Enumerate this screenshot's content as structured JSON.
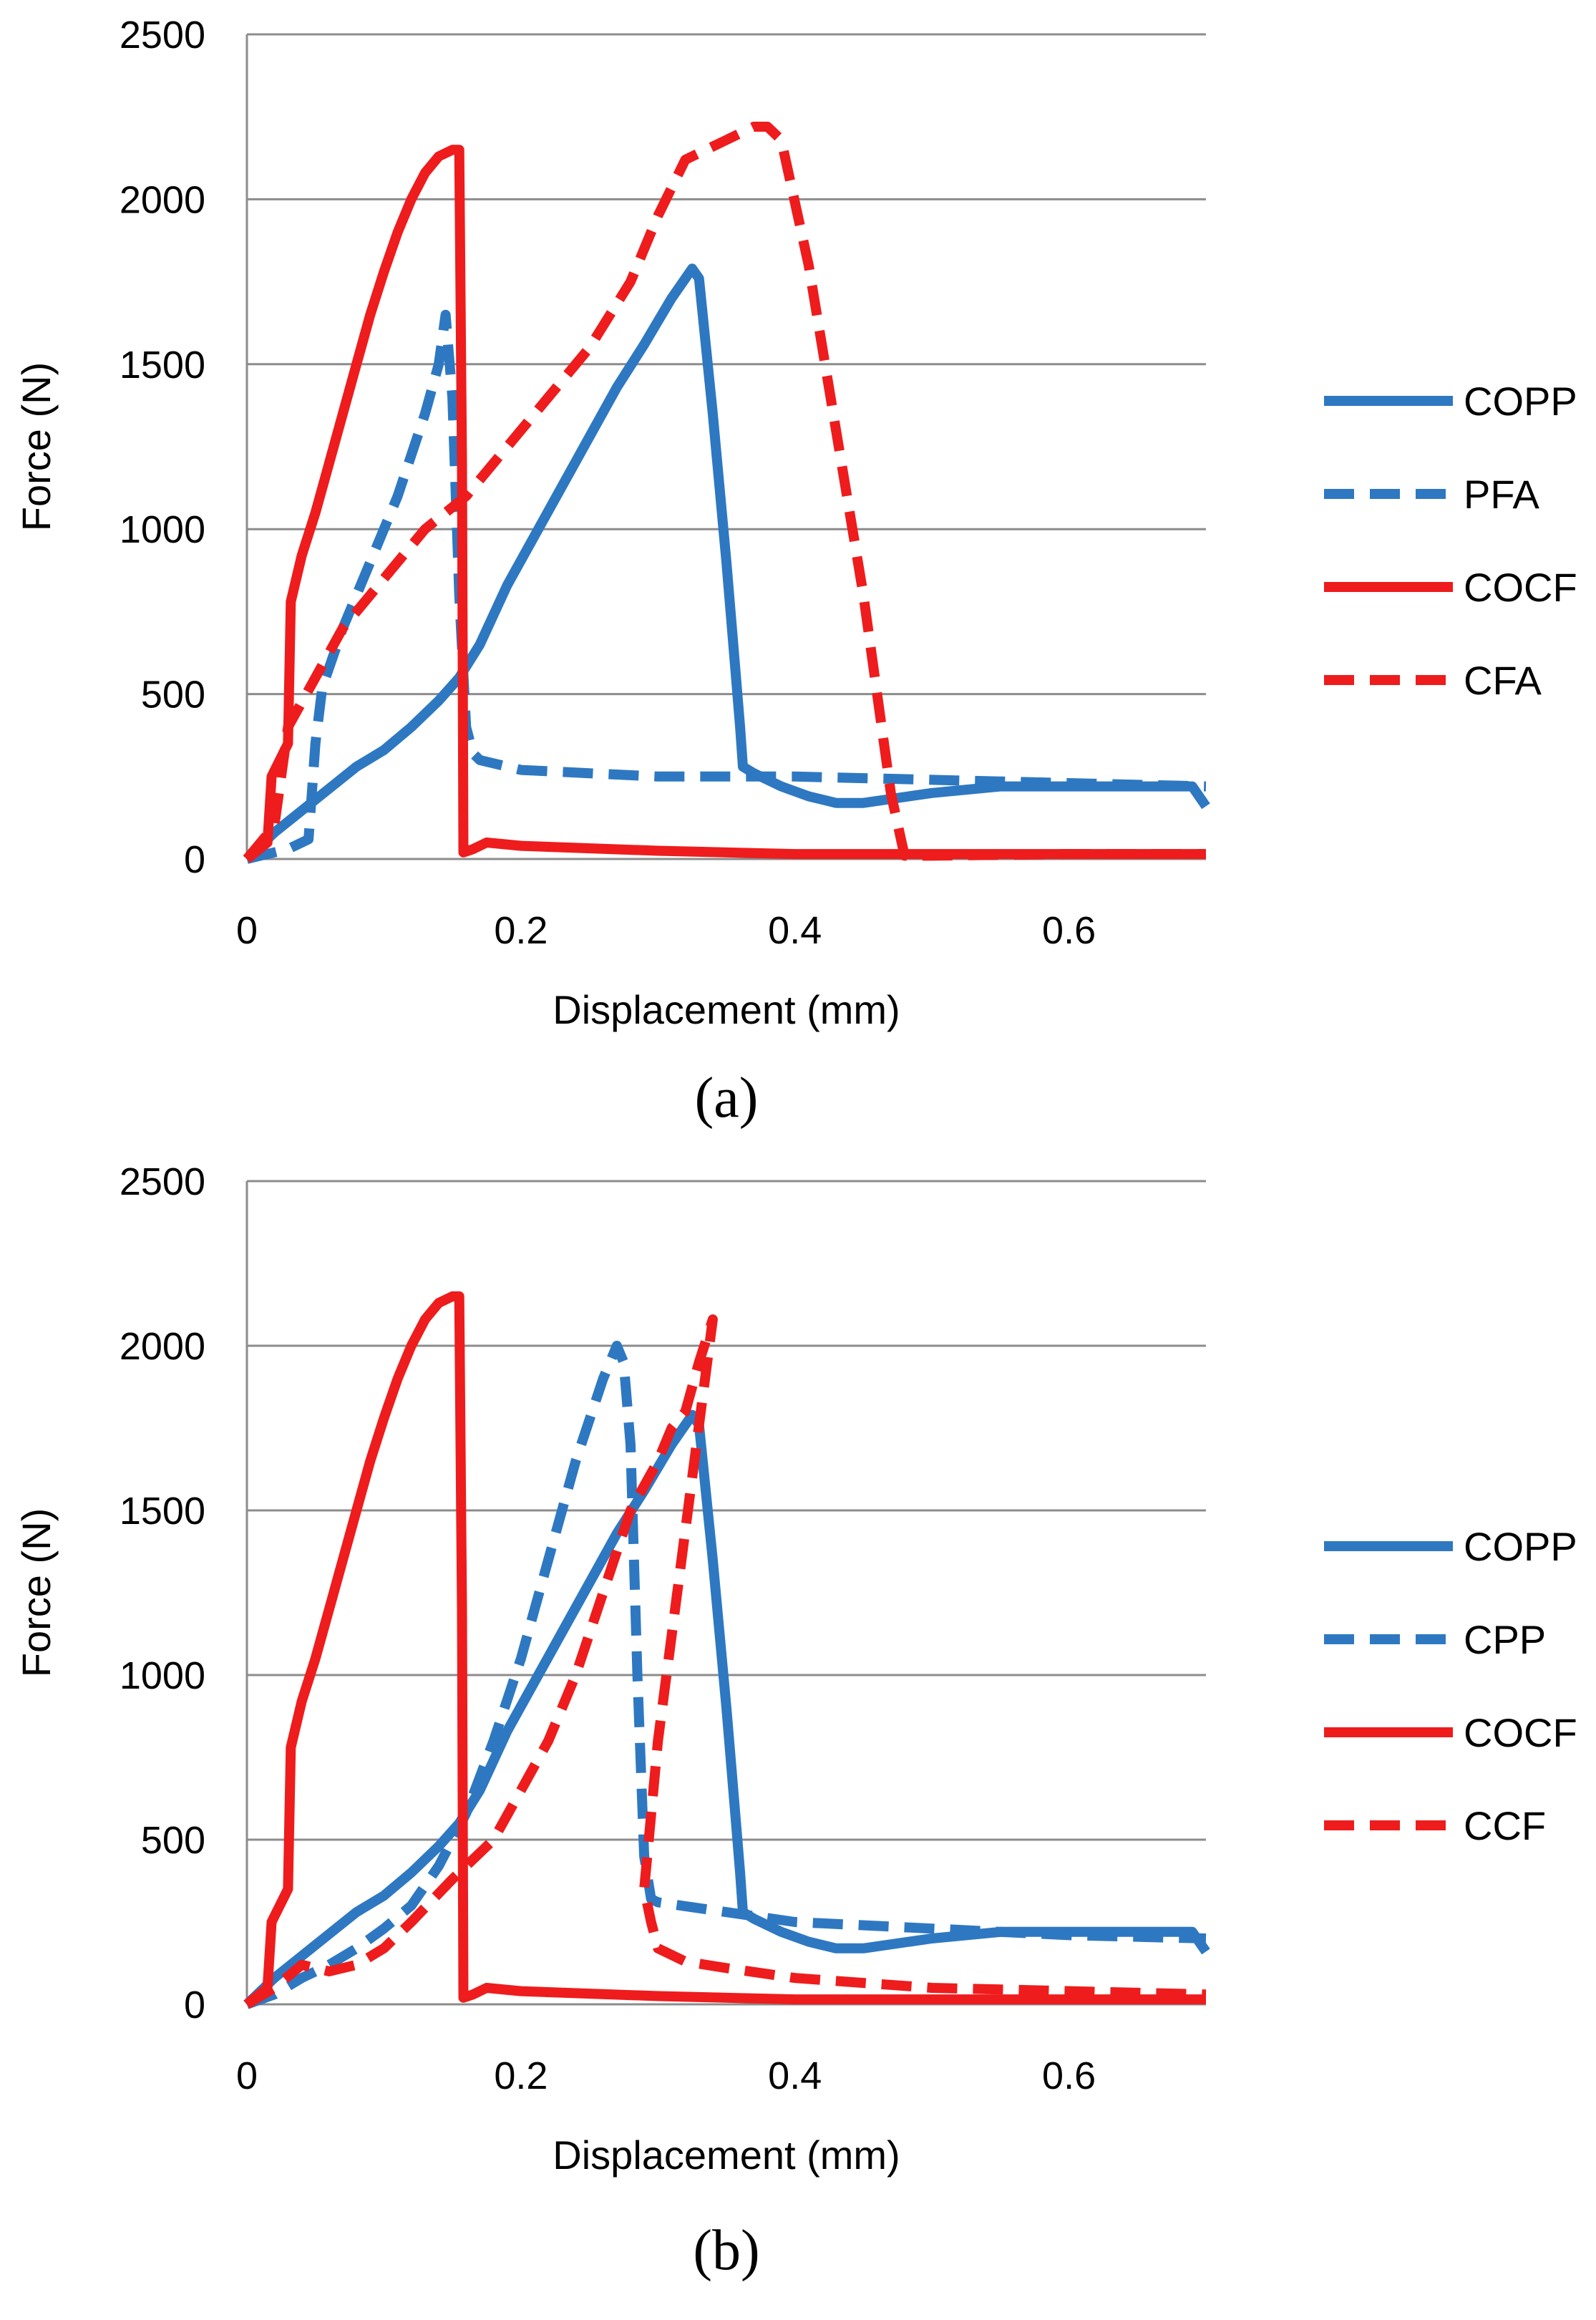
{
  "chart_data": [
    {
      "type": "line",
      "panel": "a",
      "caption": "(a)",
      "xlabel": "Displacement (mm)",
      "ylabel": "Force (N)",
      "xlim": [
        0,
        0.7
      ],
      "ylim": [
        0,
        2500
      ],
      "xticks": [
        0,
        0.2,
        0.4,
        0.6
      ],
      "xtick_labels": [
        "0",
        "0.2",
        "0.4",
        "0.6"
      ],
      "yticks": [
        0,
        500,
        1000,
        1500,
        2000,
        2500
      ],
      "ytick_labels": [
        "0",
        "500",
        "1000",
        "1500",
        "2000",
        "2500"
      ],
      "grid": "horizontal",
      "legend_position": "right",
      "series": [
        {
          "name": "COPP",
          "color": "#2e78c2",
          "dash": "solid",
          "x": [
            0,
            0.02,
            0.05,
            0.08,
            0.1,
            0.12,
            0.14,
            0.155,
            0.17,
            0.19,
            0.21,
            0.23,
            0.25,
            0.27,
            0.29,
            0.31,
            0.32,
            0.325,
            0.33,
            0.34,
            0.35,
            0.355,
            0.36,
            0.362,
            0.37,
            0.39,
            0.41,
            0.43,
            0.45,
            0.5,
            0.55,
            0.6,
            0.65,
            0.69,
            0.7
          ],
          "y": [
            0,
            80,
            180,
            280,
            330,
            400,
            480,
            550,
            650,
            830,
            980,
            1130,
            1280,
            1430,
            1560,
            1700,
            1760,
            1790,
            1760,
            1350,
            900,
            650,
            400,
            280,
            260,
            220,
            190,
            170,
            170,
            200,
            220,
            220,
            220,
            220,
            160
          ]
        },
        {
          "name": "PFA",
          "color": "#2e78c2",
          "dash": "dashed",
          "x": [
            0,
            0.03,
            0.045,
            0.05,
            0.055,
            0.07,
            0.09,
            0.11,
            0.13,
            0.14,
            0.145,
            0.15,
            0.155,
            0.16,
            0.165,
            0.17,
            0.2,
            0.25,
            0.3,
            0.35,
            0.4,
            0.5,
            0.6,
            0.7
          ],
          "y": [
            0,
            30,
            60,
            350,
            520,
            700,
            900,
            1100,
            1350,
            1500,
            1650,
            1400,
            800,
            400,
            320,
            300,
            270,
            260,
            250,
            250,
            250,
            240,
            230,
            220
          ]
        },
        {
          "name": "COCF",
          "color": "#ee1c1c",
          "dash": "solid",
          "x": [
            0,
            0.015,
            0.018,
            0.03,
            0.032,
            0.04,
            0.05,
            0.06,
            0.07,
            0.08,
            0.09,
            0.1,
            0.11,
            0.12,
            0.13,
            0.14,
            0.15,
            0.155,
            0.157,
            0.158,
            0.165,
            0.175,
            0.2,
            0.3,
            0.4,
            0.5,
            0.6,
            0.7
          ],
          "y": [
            0,
            50,
            250,
            350,
            780,
            920,
            1050,
            1200,
            1350,
            1500,
            1650,
            1780,
            1900,
            2000,
            2080,
            2130,
            2150,
            2150,
            1200,
            20,
            30,
            50,
            40,
            25,
            15,
            15,
            15,
            15
          ]
        },
        {
          "name": "CFA",
          "color": "#ee1c1c",
          "dash": "dashed",
          "x": [
            0,
            0.02,
            0.03,
            0.05,
            0.07,
            0.1,
            0.13,
            0.16,
            0.2,
            0.25,
            0.28,
            0.3,
            0.32,
            0.35,
            0.37,
            0.38,
            0.39,
            0.41,
            0.43,
            0.45,
            0.47,
            0.48,
            0.5,
            0.6,
            0.7
          ],
          "y": [
            0,
            100,
            400,
            550,
            700,
            850,
            1000,
            1100,
            1300,
            1550,
            1750,
            1950,
            2120,
            2180,
            2220,
            2220,
            2180,
            1800,
            1300,
            800,
            200,
            10,
            10,
            15,
            15
          ]
        }
      ]
    },
    {
      "type": "line",
      "panel": "b",
      "caption": "(b)",
      "xlabel": "Displacement (mm)",
      "ylabel": "Force (N)",
      "xlim": [
        0,
        0.7
      ],
      "ylim": [
        0,
        2500
      ],
      "xticks": [
        0,
        0.2,
        0.4,
        0.6
      ],
      "xtick_labels": [
        "0",
        "0.2",
        "0.4",
        "0.6"
      ],
      "yticks": [
        0,
        500,
        1000,
        1500,
        2000,
        2500
      ],
      "ytick_labels": [
        "0",
        "500",
        "1000",
        "1500",
        "2000",
        "2500"
      ],
      "grid": "horizontal",
      "legend_position": "right",
      "series": [
        {
          "name": "COPP",
          "color": "#2e78c2",
          "dash": "solid",
          "x": [
            0,
            0.02,
            0.05,
            0.08,
            0.1,
            0.12,
            0.14,
            0.155,
            0.17,
            0.19,
            0.21,
            0.23,
            0.25,
            0.27,
            0.29,
            0.31,
            0.32,
            0.325,
            0.33,
            0.34,
            0.35,
            0.355,
            0.36,
            0.362,
            0.37,
            0.39,
            0.41,
            0.43,
            0.45,
            0.5,
            0.55,
            0.6,
            0.65,
            0.69,
            0.7
          ],
          "y": [
            0,
            80,
            180,
            280,
            330,
            400,
            480,
            550,
            650,
            830,
            980,
            1130,
            1280,
            1430,
            1560,
            1700,
            1760,
            1790,
            1760,
            1350,
            900,
            650,
            400,
            280,
            260,
            220,
            190,
            170,
            170,
            200,
            220,
            220,
            220,
            220,
            160
          ]
        },
        {
          "name": "CPP",
          "color": "#2e78c2",
          "dash": "dashed",
          "x": [
            0,
            0.02,
            0.04,
            0.06,
            0.08,
            0.1,
            0.12,
            0.14,
            0.16,
            0.18,
            0.2,
            0.22,
            0.24,
            0.26,
            0.27,
            0.275,
            0.28,
            0.285,
            0.29,
            0.295,
            0.3,
            0.35,
            0.4,
            0.5,
            0.6,
            0.7
          ],
          "y": [
            0,
            30,
            80,
            120,
            170,
            230,
            300,
            420,
            580,
            800,
            1050,
            1350,
            1650,
            1900,
            2000,
            1950,
            1700,
            1000,
            450,
            320,
            310,
            280,
            250,
            230,
            210,
            200
          ]
        },
        {
          "name": "COCF",
          "color": "#ee1c1c",
          "dash": "solid",
          "x": [
            0,
            0.015,
            0.018,
            0.03,
            0.032,
            0.04,
            0.05,
            0.06,
            0.07,
            0.08,
            0.09,
            0.1,
            0.11,
            0.12,
            0.13,
            0.14,
            0.15,
            0.155,
            0.157,
            0.158,
            0.165,
            0.175,
            0.2,
            0.3,
            0.4,
            0.5,
            0.6,
            0.7
          ],
          "y": [
            0,
            50,
            250,
            350,
            780,
            920,
            1050,
            1200,
            1350,
            1500,
            1650,
            1780,
            1900,
            2000,
            2080,
            2130,
            2150,
            2150,
            1200,
            20,
            30,
            50,
            40,
            25,
            15,
            15,
            15,
            15
          ]
        },
        {
          "name": "CCF",
          "color": "#ee1c1c",
          "dash": "dashed",
          "x": [
            0,
            0.02,
            0.04,
            0.06,
            0.08,
            0.1,
            0.12,
            0.15,
            0.18,
            0.2,
            0.22,
            0.24,
            0.26,
            0.28,
            0.3,
            0.31,
            0.32,
            0.33,
            0.34,
            0.3,
            0.29,
            0.295,
            0.3,
            0.32,
            0.35,
            0.4,
            0.5,
            0.6,
            0.7
          ],
          "y": [
            0,
            50,
            120,
            100,
            120,
            170,
            250,
            380,
            500,
            650,
            800,
            1000,
            1250,
            1500,
            1650,
            1750,
            1800,
            1950,
            2080,
            800,
            350,
            250,
            170,
            130,
            110,
            80,
            50,
            40,
            30
          ]
        }
      ]
    }
  ]
}
